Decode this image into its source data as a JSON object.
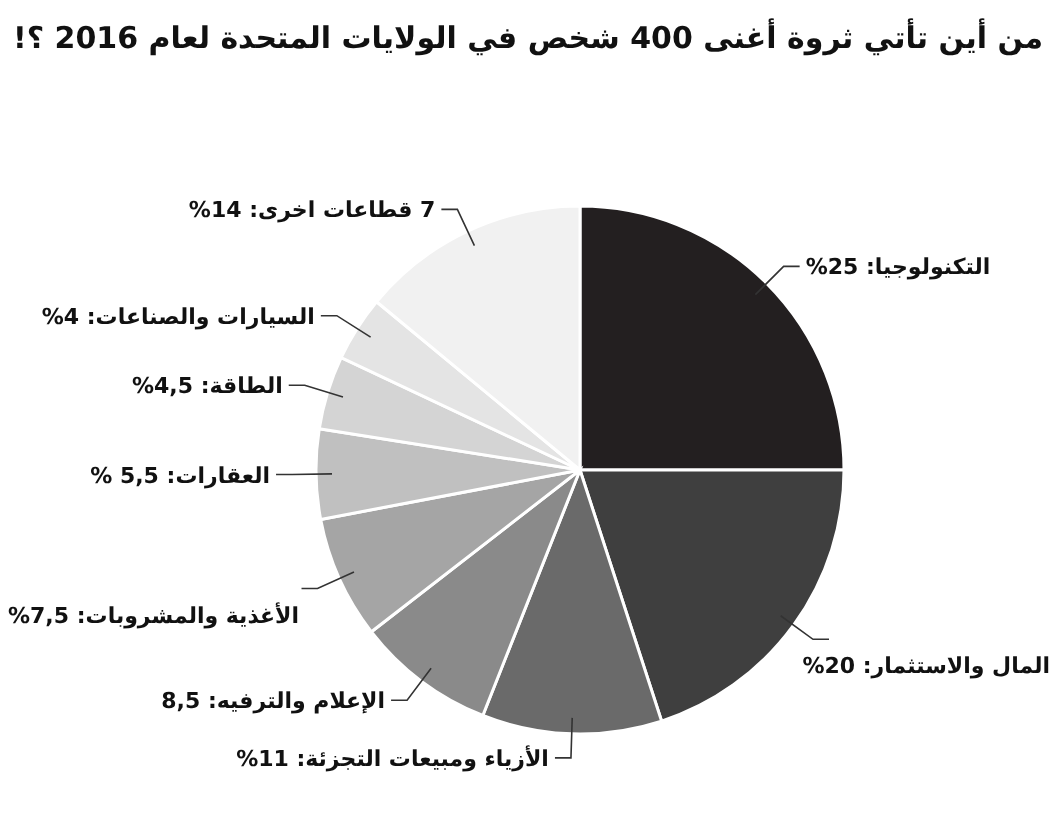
{
  "chart_data": {
    "type": "pie",
    "title": "من أين تأتي ثروة أغنى 400 شخص في الولايات المتحدة لعام 2016 ؟!",
    "categories": [
      "التكنولوجيا",
      "المال والاستثمار",
      "الأزياء ومبيعات التجزئة",
      "الإعلام والترفيه",
      "الأغذية والمشروبات",
      "العقارات",
      "الطاقة",
      "السيارات والصناعات",
      "7 قطاعات اخرى"
    ],
    "values": [
      25,
      20,
      11,
      8.5,
      7.5,
      5.5,
      4.5,
      4,
      14
    ],
    "value_labels": [
      "25%",
      "20%",
      "11%",
      "8,5",
      "7,5%",
      "5,5 %",
      "4,5%",
      "4%",
      "14%"
    ],
    "colors": [
      "#231f20",
      "#3f3f3f",
      "#6a6a6a",
      "#8a8a8a",
      "#a5a5a5",
      "#c0c0c0",
      "#d4d4d4",
      "#e4e4e4",
      "#f1f1f1"
    ],
    "legend": false
  }
}
